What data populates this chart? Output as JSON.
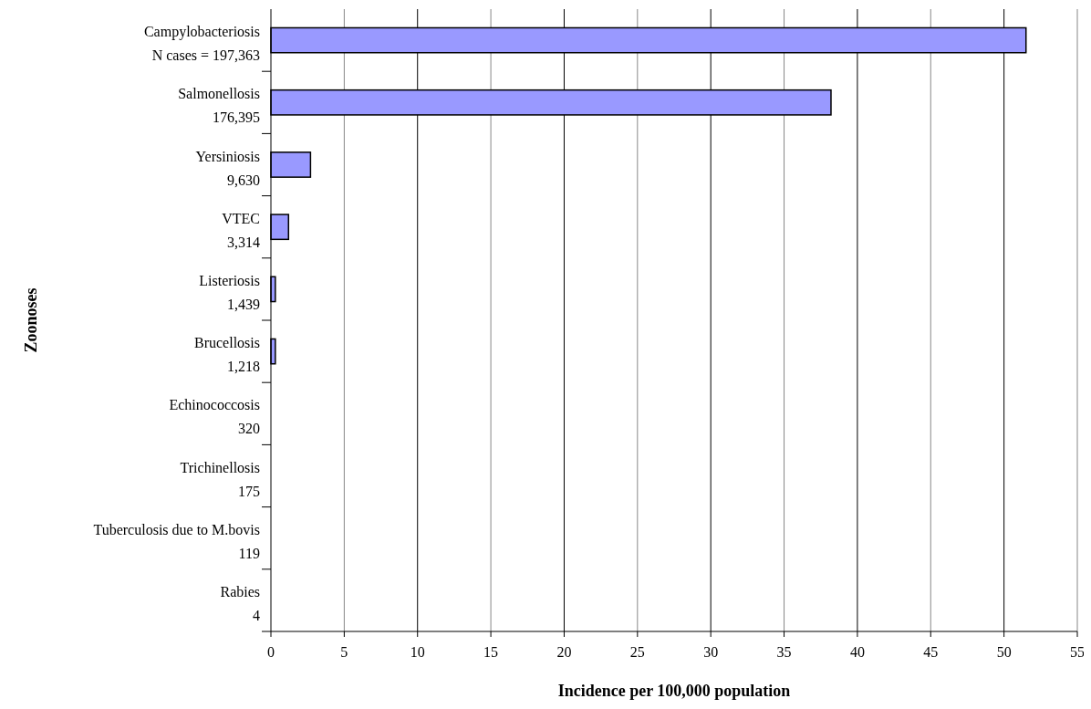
{
  "chart_data": {
    "type": "bar",
    "orientation": "horizontal",
    "xlabel": "Incidence per 100,000 population",
    "ylabel": "Zoonoses",
    "categories": [
      "Campylobacteriosis\nN cases = 197,363",
      "Salmonellosis\n176,395",
      "Yersiniosis\n9,630",
      "VTEC\n3,314",
      "Listeriosis\n1,439",
      "Brucellosis\n1,218",
      "Echinococcosis\n320",
      "Trichinellosis\n175",
      "Tuberculosis due to M.bovis\n119",
      "Rabies\n4"
    ],
    "values": [
      51.5,
      38.2,
      2.7,
      1.2,
      0.3,
      0.3,
      0,
      0,
      0,
      0
    ],
    "color": "#9999ff",
    "xlim": [
      0,
      55
    ],
    "xticks": [
      0,
      5,
      10,
      15,
      20,
      25,
      30,
      35,
      40,
      45,
      50,
      55
    ],
    "grid": "x"
  }
}
